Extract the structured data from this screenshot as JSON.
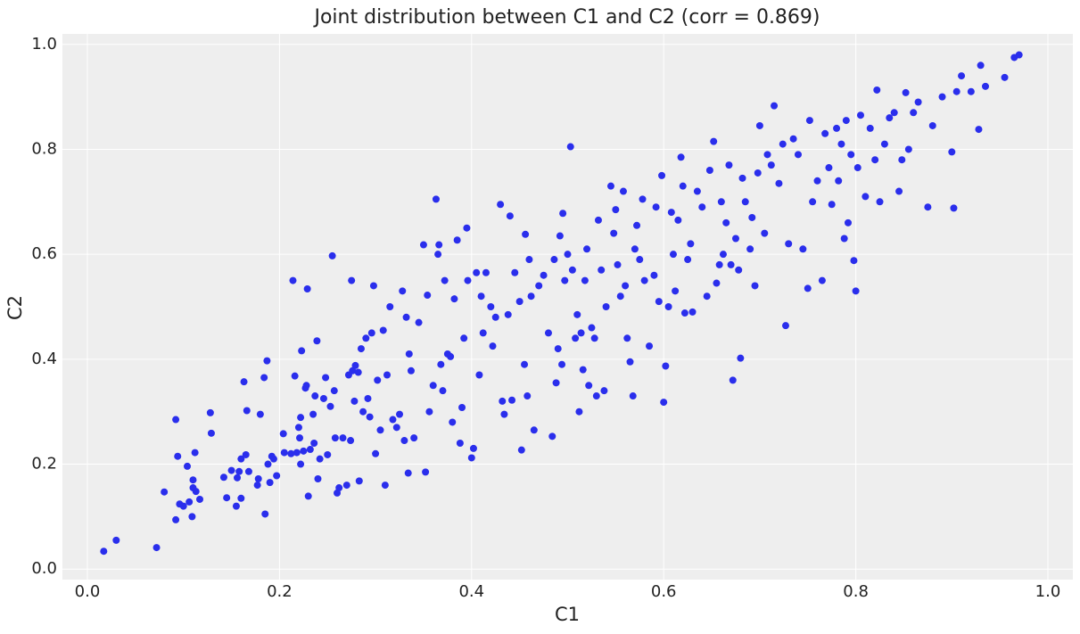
{
  "chart_data": {
    "type": "scatter",
    "title": "Joint distribution between C1 and C2 (corr = 0.869)",
    "xlabel": "C1",
    "ylabel": "C2",
    "color": "#2a2eec",
    "grid": true,
    "xlim": [
      -0.026,
      1.026
    ],
    "ylim": [
      -0.02,
      1.02
    ],
    "xticks": [
      {
        "value": 0,
        "label": "0.0"
      },
      0.2,
      0.4,
      0.6,
      0.8,
      {
        "value": 1,
        "label": "1.0"
      }
    ],
    "yticks": [
      {
        "value": 0,
        "label": "0.0"
      },
      0.2,
      0.4,
      0.6,
      0.8,
      {
        "value": 1,
        "label": "1.0"
      }
    ],
    "x": [
      0.017,
      0.03,
      0.072,
      0.08,
      0.092,
      0.092,
      0.094,
      0.096,
      0.1,
      0.104,
      0.106,
      0.109,
      0.11,
      0.11,
      0.112,
      0.113,
      0.117,
      0.128,
      0.129,
      0.142,
      0.145,
      0.15,
      0.155,
      0.156,
      0.158,
      0.16,
      0.16,
      0.163,
      0.165,
      0.166,
      0.168,
      0.177,
      0.178,
      0.18,
      0.184,
      0.185,
      0.187,
      0.188,
      0.19,
      0.192,
      0.194,
      0.197,
      0.204,
      0.205,
      0.212,
      0.214,
      0.216,
      0.218,
      0.22,
      0.221,
      0.222,
      0.222,
      0.223,
      0.225,
      0.227,
      0.228,
      0.229,
      0.23,
      0.232,
      0.235,
      0.236,
      0.237,
      0.239,
      0.24,
      0.242,
      0.246,
      0.248,
      0.25,
      0.253,
      0.255,
      0.257,
      0.258,
      0.26,
      0.262,
      0.266,
      0.27,
      0.272,
      0.274,
      0.275,
      0.276,
      0.278,
      0.279,
      0.282,
      0.283,
      0.285,
      0.287,
      0.29,
      0.292,
      0.294,
      0.296,
      0.298,
      0.3,
      0.302,
      0.305,
      0.308,
      0.31,
      0.312,
      0.315,
      0.318,
      0.322,
      0.325,
      0.328,
      0.33,
      0.332,
      0.334,
      0.335,
      0.337,
      0.34,
      0.345,
      0.35,
      0.352,
      0.354,
      0.356,
      0.36,
      0.363,
      0.365,
      0.366,
      0.368,
      0.37,
      0.372,
      0.375,
      0.378,
      0.38,
      0.382,
      0.385,
      0.388,
      0.39,
      0.392,
      0.395,
      0.396,
      0.4,
      0.402,
      0.405,
      0.408,
      0.41,
      0.412,
      0.415,
      0.42,
      0.422,
      0.425,
      0.43,
      0.432,
      0.434,
      0.438,
      0.44,
      0.442,
      0.445,
      0.45,
      0.452,
      0.455,
      0.456,
      0.458,
      0.46,
      0.462,
      0.465,
      0.47,
      0.475,
      0.48,
      0.484,
      0.486,
      0.488,
      0.49,
      0.492,
      0.494,
      0.495,
      0.497,
      0.5,
      0.503,
      0.505,
      0.508,
      0.51,
      0.512,
      0.514,
      0.516,
      0.518,
      0.52,
      0.522,
      0.525,
      0.528,
      0.53,
      0.532,
      0.535,
      0.538,
      0.54,
      0.545,
      0.548,
      0.55,
      0.552,
      0.555,
      0.558,
      0.56,
      0.562,
      0.565,
      0.568,
      0.57,
      0.572,
      0.575,
      0.578,
      0.58,
      0.585,
      0.59,
      0.592,
      0.595,
      0.598,
      0.6,
      0.602,
      0.605,
      0.608,
      0.61,
      0.612,
      0.615,
      0.618,
      0.62,
      0.622,
      0.625,
      0.628,
      0.63,
      0.635,
      0.64,
      0.645,
      0.648,
      0.652,
      0.655,
      0.658,
      0.66,
      0.662,
      0.665,
      0.668,
      0.67,
      0.672,
      0.675,
      0.678,
      0.68,
      0.682,
      0.685,
      0.69,
      0.692,
      0.695,
      0.698,
      0.7,
      0.705,
      0.708,
      0.712,
      0.715,
      0.72,
      0.724,
      0.727,
      0.73,
      0.735,
      0.74,
      0.745,
      0.75,
      0.752,
      0.755,
      0.76,
      0.765,
      0.768,
      0.772,
      0.775,
      0.78,
      0.782,
      0.785,
      0.788,
      0.79,
      0.792,
      0.795,
      0.798,
      0.8,
      0.802,
      0.805,
      0.81,
      0.815,
      0.82,
      0.822,
      0.825,
      0.83,
      0.835,
      0.84,
      0.845,
      0.848,
      0.852,
      0.855,
      0.86,
      0.865,
      0.875,
      0.88,
      0.89,
      0.9,
      0.902,
      0.905,
      0.91,
      0.92,
      0.928,
      0.93,
      0.935,
      0.955,
      0.965,
      0.97
    ],
    "y": [
      0.034,
      0.055,
      0.041,
      0.147,
      0.094,
      0.285,
      0.215,
      0.124,
      0.12,
      0.196,
      0.128,
      0.1,
      0.17,
      0.155,
      0.222,
      0.148,
      0.133,
      0.298,
      0.259,
      0.175,
      0.136,
      0.188,
      0.12,
      0.174,
      0.186,
      0.135,
      0.21,
      0.357,
      0.218,
      0.302,
      0.186,
      0.16,
      0.172,
      0.295,
      0.365,
      0.105,
      0.397,
      0.2,
      0.165,
      0.215,
      0.21,
      0.178,
      0.258,
      0.222,
      0.22,
      0.55,
      0.368,
      0.222,
      0.27,
      0.25,
      0.289,
      0.2,
      0.416,
      0.225,
      0.345,
      0.35,
      0.534,
      0.139,
      0.228,
      0.295,
      0.24,
      0.33,
      0.435,
      0.172,
      0.21,
      0.325,
      0.365,
      0.218,
      0.31,
      0.597,
      0.34,
      0.25,
      0.145,
      0.155,
      0.25,
      0.16,
      0.37,
      0.245,
      0.55,
      0.378,
      0.32,
      0.388,
      0.375,
      0.168,
      0.42,
      0.3,
      0.44,
      0.325,
      0.29,
      0.45,
      0.54,
      0.22,
      0.36,
      0.265,
      0.455,
      0.16,
      0.37,
      0.5,
      0.285,
      0.27,
      0.295,
      0.53,
      0.245,
      0.48,
      0.183,
      0.41,
      0.378,
      0.25,
      0.47,
      0.618,
      0.185,
      0.522,
      0.3,
      0.35,
      0.705,
      0.6,
      0.618,
      0.39,
      0.34,
      0.55,
      0.41,
      0.405,
      0.28,
      0.515,
      0.627,
      0.24,
      0.308,
      0.44,
      0.65,
      0.55,
      0.212,
      0.23,
      0.565,
      0.37,
      0.52,
      0.45,
      0.565,
      0.5,
      0.425,
      0.48,
      0.695,
      0.32,
      0.295,
      0.485,
      0.673,
      0.322,
      0.565,
      0.51,
      0.227,
      0.39,
      0.638,
      0.33,
      0.59,
      0.52,
      0.265,
      0.54,
      0.56,
      0.45,
      0.253,
      0.59,
      0.355,
      0.42,
      0.635,
      0.39,
      0.678,
      0.55,
      0.6,
      0.805,
      0.57,
      0.44,
      0.485,
      0.3,
      0.45,
      0.38,
      0.55,
      0.61,
      0.35,
      0.46,
      0.44,
      0.33,
      0.665,
      0.57,
      0.34,
      0.5,
      0.73,
      0.64,
      0.685,
      0.58,
      0.52,
      0.72,
      0.54,
      0.44,
      0.395,
      0.33,
      0.61,
      0.655,
      0.59,
      0.705,
      0.55,
      0.425,
      0.56,
      0.69,
      0.51,
      0.75,
      0.318,
      0.387,
      0.5,
      0.68,
      0.6,
      0.53,
      0.665,
      0.785,
      0.73,
      0.488,
      0.59,
      0.62,
      0.49,
      0.72,
      0.69,
      0.52,
      0.76,
      0.815,
      0.545,
      0.58,
      0.7,
      0.6,
      0.66,
      0.77,
      0.58,
      0.36,
      0.63,
      0.57,
      0.402,
      0.745,
      0.7,
      0.61,
      0.67,
      0.54,
      0.755,
      0.845,
      0.64,
      0.79,
      0.77,
      0.883,
      0.735,
      0.81,
      0.464,
      0.62,
      0.82,
      0.79,
      0.61,
      0.535,
      0.855,
      0.7,
      0.74,
      0.55,
      0.83,
      0.765,
      0.695,
      0.84,
      0.74,
      0.81,
      0.63,
      0.855,
      0.66,
      0.79,
      0.588,
      0.53,
      0.765,
      0.865,
      0.71,
      0.84,
      0.78,
      0.913,
      0.7,
      0.81,
      0.86,
      0.87,
      0.72,
      0.78,
      0.908,
      0.8,
      0.87,
      0.89,
      0.69,
      0.845,
      0.9,
      0.795,
      0.688,
      0.91,
      0.94,
      0.91,
      0.838,
      0.96,
      0.92,
      0.937,
      0.975,
      0.98
    ]
  }
}
